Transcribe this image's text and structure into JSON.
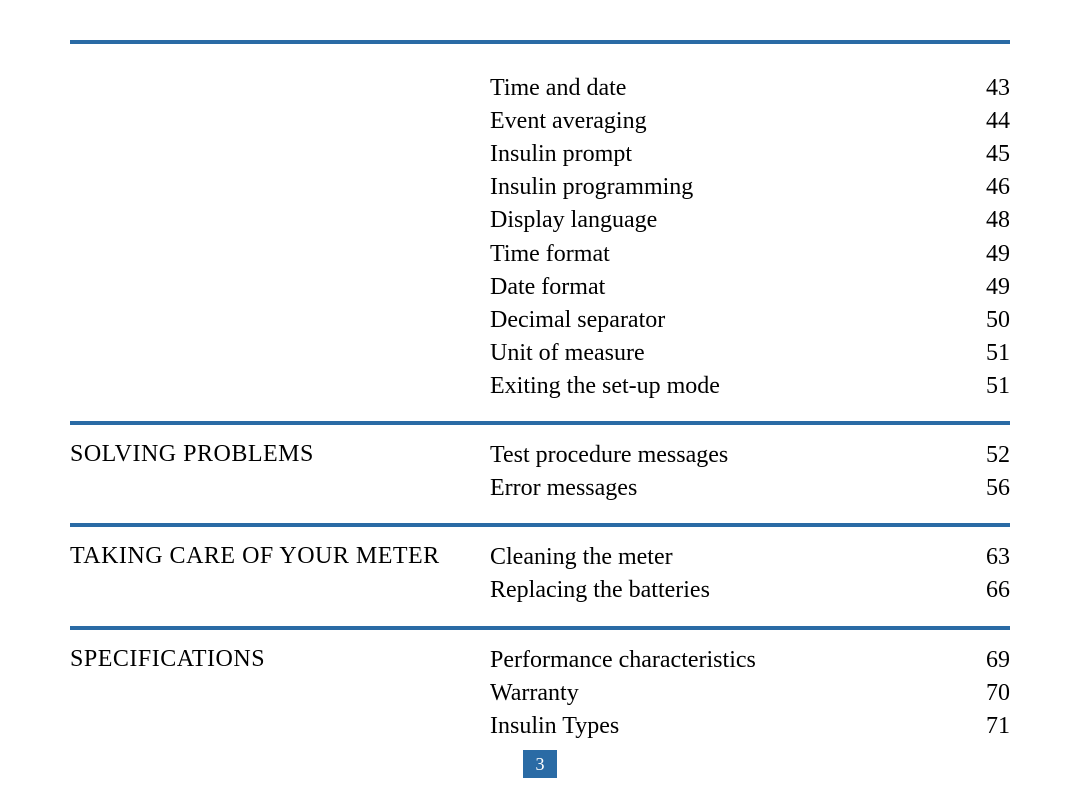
{
  "colors": {
    "rule": "#2a6ba5",
    "text": "#000000",
    "badge_bg": "#2a6ba5",
    "badge_text": "#ffffff",
    "page_bg": "#ffffff"
  },
  "typography": {
    "body_fontsize_pt": 18,
    "font_family": "Georgia, Times New Roman, serif"
  },
  "page_number": "3",
  "sections": [
    {
      "header": "",
      "items": [
        {
          "label": "Time and date",
          "page": "43"
        },
        {
          "label": "Event averaging",
          "page": "44"
        },
        {
          "label": "Insulin prompt",
          "page": "45"
        },
        {
          "label": "Insulin programming",
          "page": "46"
        },
        {
          "label": "Display language",
          "page": "48"
        },
        {
          "label": "Time format",
          "page": "49"
        },
        {
          "label": "Date format",
          "page": "49"
        },
        {
          "label": "Decimal separator",
          "page": "50"
        },
        {
          "label": "Unit of measure",
          "page": "51"
        },
        {
          "label": "Exiting the set-up mode",
          "page": "51"
        }
      ]
    },
    {
      "header": "SOLVING PROBLEMS",
      "items": [
        {
          "label": "Test procedure messages",
          "page": "52"
        },
        {
          "label": "Error messages",
          "page": "56"
        }
      ]
    },
    {
      "header": "TAKING CARE OF YOUR METER",
      "items": [
        {
          "label": "Cleaning the meter",
          "page": "63"
        },
        {
          "label": "Replacing the batteries",
          "page": "66"
        }
      ]
    },
    {
      "header": "SPECIFICATIONS",
      "items": [
        {
          "label": "Performance characteristics",
          "page": "69"
        },
        {
          "label": "Warranty",
          "page": "70"
        },
        {
          "label": "Insulin Types",
          "page": "71"
        }
      ]
    }
  ]
}
